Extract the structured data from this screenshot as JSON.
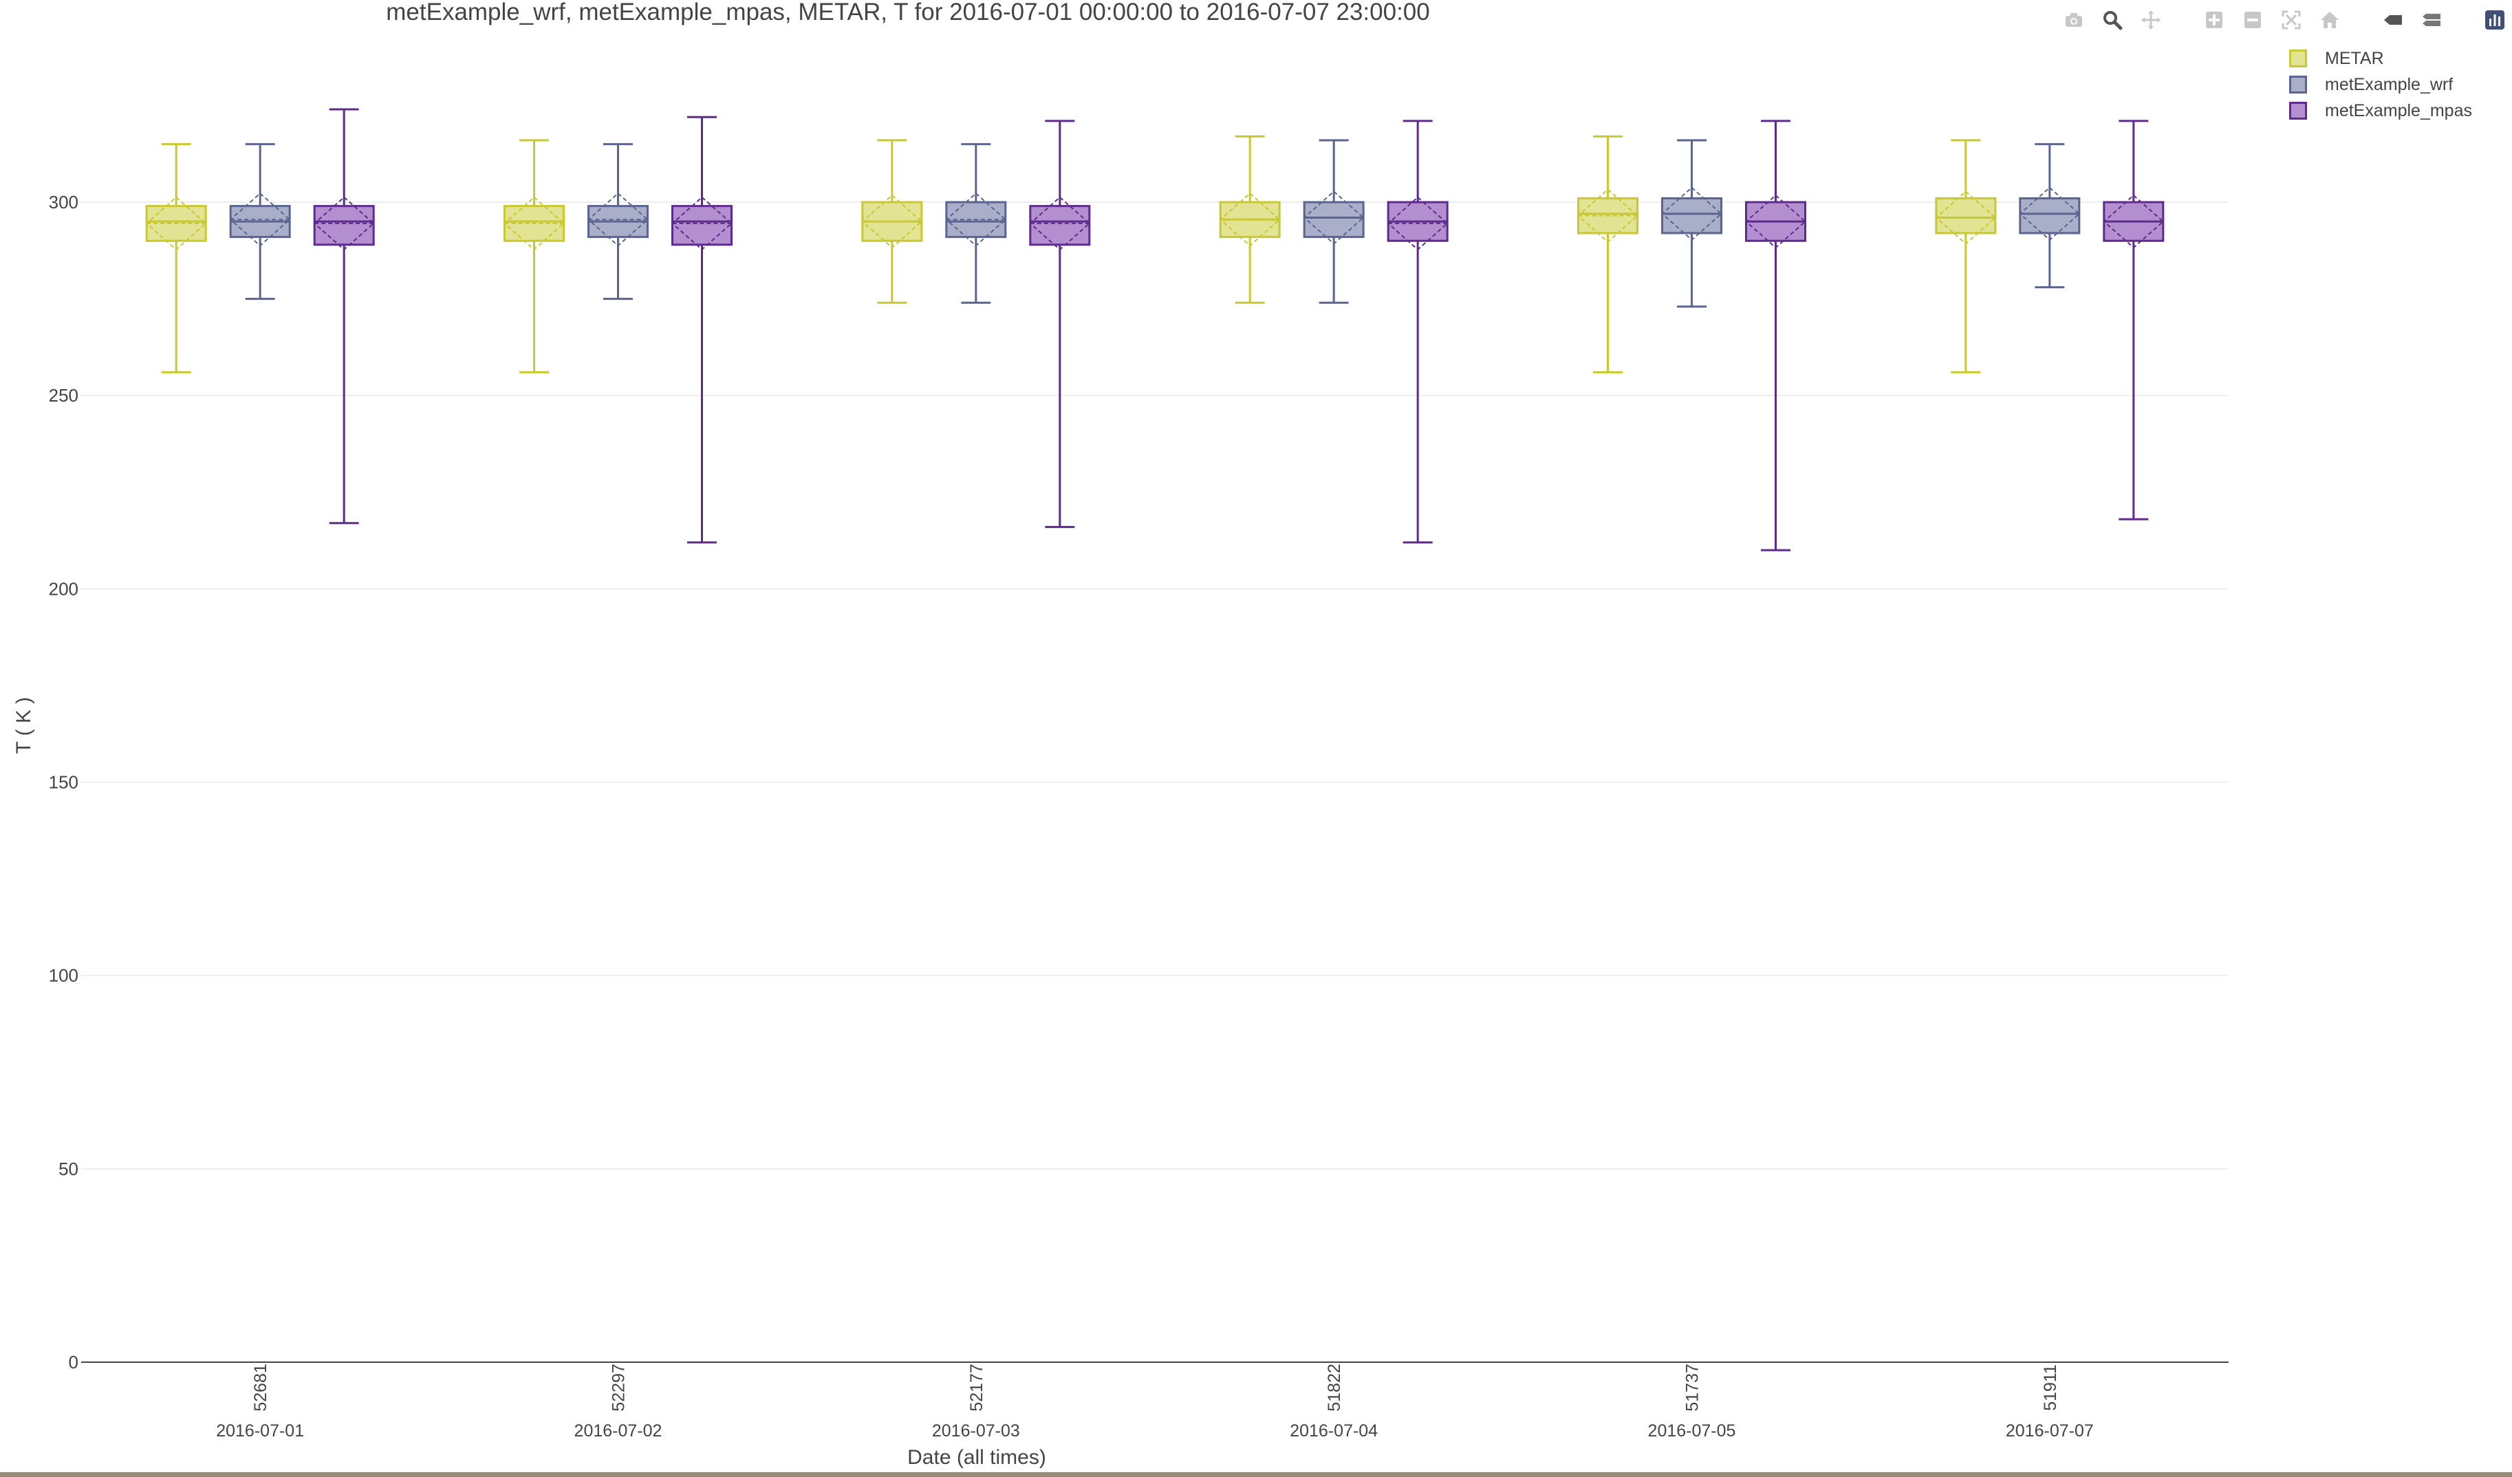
{
  "chart_data": {
    "type": "box",
    "title": "metExample_wrf, metExample_mpas, METAR, T for 2016-07-01 00:00:00 to 2016-07-07 23:00:00",
    "xlabel": "Date (all times)",
    "ylabel": "T ( K )",
    "ylim": [
      0,
      330
    ],
    "yticks": [
      0,
      50,
      100,
      150,
      200,
      250,
      300
    ],
    "grid": true,
    "legend_position": "top-right",
    "categories": [
      "2016-07-01",
      "2016-07-02",
      "2016-07-03",
      "2016-07-04",
      "2016-07-05",
      "2016-07-07"
    ],
    "counts": [
      "52681",
      "52297",
      "52177",
      "51822",
      "51737",
      "51911"
    ],
    "series": [
      {
        "name": "METAR",
        "color": "#c8c831",
        "fill": "#e3e394",
        "boxes": [
          {
            "min": 256,
            "q1": 290,
            "median": 295,
            "q3": 299,
            "max": 315,
            "mean": 294.5
          },
          {
            "min": 256,
            "q1": 290,
            "median": 295,
            "q3": 299,
            "max": 316,
            "mean": 294.5
          },
          {
            "min": 274,
            "q1": 290,
            "median": 295,
            "q3": 300,
            "max": 316,
            "mean": 295
          },
          {
            "min": 274,
            "q1": 291,
            "median": 295.5,
            "q3": 300,
            "max": 317,
            "mean": 295.5
          },
          {
            "min": 256,
            "q1": 292,
            "median": 297,
            "q3": 301,
            "max": 317,
            "mean": 296.5
          },
          {
            "min": 256,
            "q1": 292,
            "median": 296,
            "q3": 301,
            "max": 316,
            "mean": 296
          }
        ]
      },
      {
        "name": "metExample_wrf",
        "color": "#5b6491",
        "fill": "#a9aec9",
        "boxes": [
          {
            "min": 275,
            "q1": 291,
            "median": 295,
            "q3": 299,
            "max": 315,
            "mean": 295.5
          },
          {
            "min": 275,
            "q1": 291,
            "median": 295,
            "q3": 299,
            "max": 315,
            "mean": 295.5
          },
          {
            "min": 274,
            "q1": 291,
            "median": 295,
            "q3": 300,
            "max": 315,
            "mean": 295.5
          },
          {
            "min": 274,
            "q1": 291,
            "median": 296,
            "q3": 300,
            "max": 316,
            "mean": 296
          },
          {
            "min": 273,
            "q1": 292,
            "median": 297,
            "q3": 301,
            "max": 316,
            "mean": 297
          },
          {
            "min": 278,
            "q1": 292,
            "median": 297,
            "q3": 301,
            "max": 315,
            "mean": 297
          }
        ]
      },
      {
        "name": "metExample_mpas",
        "color": "#5e2a8c",
        "fill": "#b48fcf",
        "boxes": [
          {
            "min": 217,
            "q1": 289,
            "median": 295,
            "q3": 299,
            "max": 324,
            "mean": 294.5
          },
          {
            "min": 212,
            "q1": 289,
            "median": 295,
            "q3": 299,
            "max": 322,
            "mean": 294.5
          },
          {
            "min": 216,
            "q1": 289,
            "median": 295,
            "q3": 299,
            "max": 321,
            "mean": 294.5
          },
          {
            "min": 212,
            "q1": 290,
            "median": 295,
            "q3": 300,
            "max": 321,
            "mean": 294.5
          },
          {
            "min": 210,
            "q1": 290,
            "median": 295,
            "q3": 300,
            "max": 321,
            "mean": 295
          },
          {
            "min": 218,
            "q1": 290,
            "median": 295,
            "q3": 300,
            "max": 321,
            "mean": 295
          }
        ]
      }
    ]
  },
  "modebar": {
    "buttons": [
      "camera-icon",
      "zoom-icon",
      "pan-icon",
      "zoom-in-icon",
      "zoom-out-icon",
      "autoscale-icon",
      "home-icon",
      "hover-closest-icon",
      "hover-compare-icon",
      "plotly-logo-icon"
    ]
  }
}
